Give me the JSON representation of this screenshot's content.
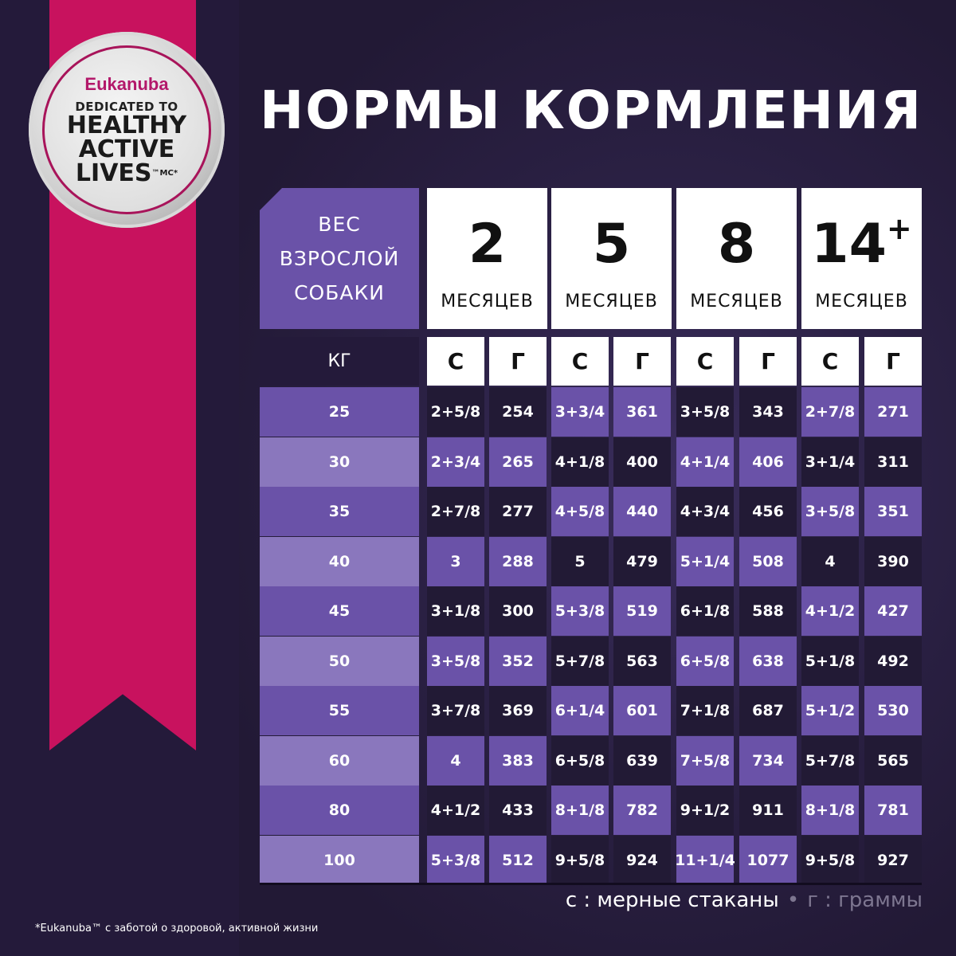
{
  "logo": {
    "brand": "Eukanuba",
    "line1": "DEDICATED TO",
    "line2": "HEALTHY",
    "line3": "ACTIVE",
    "line4": "LIVES",
    "mark": "™MC*"
  },
  "title": "НОРМЫ КОРМЛЕНИЯ",
  "header": {
    "weight_lines": [
      "ВЕС",
      "ВЗРОСЛОЙ",
      "СОБАКИ"
    ],
    "unit": "КГ"
  },
  "ages": [
    {
      "n": "2",
      "sup": "",
      "label": "МЕСЯЦЕВ"
    },
    {
      "n": "5",
      "sup": "",
      "label": "МЕСЯЦЕВ"
    },
    {
      "n": "8",
      "sup": "",
      "label": "МЕСЯЦЕВ"
    },
    {
      "n": "14",
      "sup": "+",
      "label": "МЕСЯЦЕВ"
    }
  ],
  "subcols": [
    "С",
    "Г"
  ],
  "rows": [
    {
      "kg": "25",
      "v": [
        "2+5/8",
        "254",
        "3+3/4",
        "361",
        "3+5/8",
        "343",
        "2+7/8",
        "271"
      ]
    },
    {
      "kg": "30",
      "v": [
        "2+3/4",
        "265",
        "4+1/8",
        "400",
        "4+1/4",
        "406",
        "3+1/4",
        "311"
      ]
    },
    {
      "kg": "35",
      "v": [
        "2+7/8",
        "277",
        "4+5/8",
        "440",
        "4+3/4",
        "456",
        "3+5/8",
        "351"
      ]
    },
    {
      "kg": "40",
      "v": [
        "3",
        "288",
        "5",
        "479",
        "5+1/4",
        "508",
        "4",
        "390"
      ]
    },
    {
      "kg": "45",
      "v": [
        "3+1/8",
        "300",
        "5+3/8",
        "519",
        "6+1/8",
        "588",
        "4+1/2",
        "427"
      ]
    },
    {
      "kg": "50",
      "v": [
        "3+5/8",
        "352",
        "5+7/8",
        "563",
        "6+5/8",
        "638",
        "5+1/8",
        "492"
      ]
    },
    {
      "kg": "55",
      "v": [
        "3+7/8",
        "369",
        "6+1/4",
        "601",
        "7+1/8",
        "687",
        "5+1/2",
        "530"
      ]
    },
    {
      "kg": "60",
      "v": [
        "4",
        "383",
        "6+5/8",
        "639",
        "7+5/8",
        "734",
        "5+7/8",
        "565"
      ]
    },
    {
      "kg": "80",
      "v": [
        "4+1/2",
        "433",
        "8+1/8",
        "782",
        "9+1/2",
        "911",
        "8+1/8",
        "781"
      ]
    },
    {
      "kg": "100",
      "v": [
        "5+3/8",
        "512",
        "9+5/8",
        "924",
        "11+1/4",
        "1077",
        "9+5/8",
        "927"
      ]
    }
  ],
  "legend": {
    "c": "с : мерные стаканы",
    "sep": "•",
    "g": "г : граммы"
  },
  "footnote": "*Eukanuba™ с заботой о здоровой, активной жизни",
  "colors": {
    "background": "#241a3a",
    "ribbon": "#c8125e",
    "purple": "#6a52a8",
    "light_purple": "#8a77bd",
    "dark_cell": "#221a35"
  }
}
